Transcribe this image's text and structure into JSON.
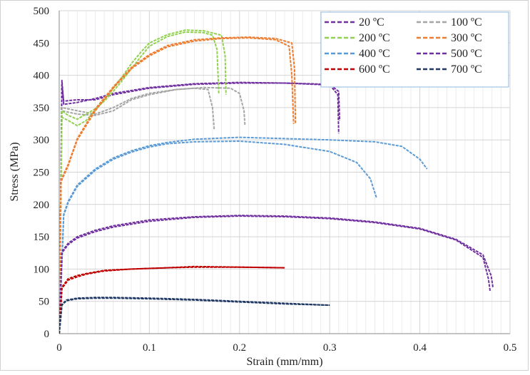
{
  "chart_data": {
    "type": "line",
    "title": "",
    "xlabel": "Strain (mm/mm)",
    "ylabel": "Stress (MPa)",
    "xlim": [
      0,
      0.5
    ],
    "ylim": [
      0,
      500
    ],
    "x_ticks": [
      "0",
      "0.1",
      "0.2",
      "0.3",
      "0.4",
      "0.5"
    ],
    "y_ticks": [
      "0",
      "50",
      "100",
      "150",
      "200",
      "250",
      "300",
      "350",
      "400",
      "450",
      "500"
    ],
    "grid": "on",
    "legend_position": "top-right",
    "series": [
      {
        "name": "20 ºC",
        "color": "#7030a0",
        "runs": [
          [
            [
              0,
              0
            ],
            [
              0.003,
              385
            ],
            [
              0.005,
              360
            ],
            [
              0.02,
              362
            ],
            [
              0.04,
              362
            ],
            [
              0.06,
              370
            ],
            [
              0.1,
              380
            ],
            [
              0.15,
              386
            ],
            [
              0.2,
              388
            ],
            [
              0.25,
              388
            ],
            [
              0.3,
              386
            ],
            [
              0.31,
              375
            ],
            [
              0.311,
              330
            ]
          ],
          [
            [
              0,
              0
            ],
            [
              0.003,
              392
            ],
            [
              0.005,
              355
            ],
            [
              0.02,
              358
            ],
            [
              0.04,
              364
            ],
            [
              0.06,
              372
            ],
            [
              0.1,
              381
            ],
            [
              0.15,
              387
            ],
            [
              0.2,
              389
            ],
            [
              0.25,
              388
            ],
            [
              0.3,
              385
            ],
            [
              0.309,
              370
            ],
            [
              0.31,
              310
            ]
          ]
        ]
      },
      {
        "name": "100 ºC",
        "color": "#a5a5a5",
        "runs": [
          [
            [
              0,
              0
            ],
            [
              0.003,
              345
            ],
            [
              0.02,
              340
            ],
            [
              0.04,
              338
            ],
            [
              0.06,
              345
            ],
            [
              0.08,
              362
            ],
            [
              0.1,
              370
            ],
            [
              0.13,
              378
            ],
            [
              0.15,
              380
            ],
            [
              0.165,
              378
            ],
            [
              0.17,
              350
            ],
            [
              0.172,
              315
            ]
          ],
          [
            [
              0,
              0
            ],
            [
              0.003,
              350
            ],
            [
              0.02,
              345
            ],
            [
              0.04,
              340
            ],
            [
              0.06,
              350
            ],
            [
              0.08,
              364
            ],
            [
              0.1,
              372
            ],
            [
              0.13,
              378
            ],
            [
              0.16,
              381
            ],
            [
              0.19,
              380
            ],
            [
              0.2,
              372
            ],
            [
              0.205,
              345
            ],
            [
              0.206,
              322
            ]
          ]
        ]
      },
      {
        "name": "200 ºC",
        "color": "#92d050",
        "runs": [
          [
            [
              0,
              0
            ],
            [
              0.003,
              345
            ],
            [
              0.01,
              338
            ],
            [
              0.02,
              332
            ],
            [
              0.03,
              340
            ],
            [
              0.04,
              348
            ],
            [
              0.05,
              360
            ],
            [
              0.06,
              375
            ],
            [
              0.07,
              392
            ],
            [
              0.08,
              410
            ],
            [
              0.09,
              428
            ],
            [
              0.1,
              445
            ],
            [
              0.12,
              460
            ],
            [
              0.14,
              467
            ],
            [
              0.16,
              466
            ],
            [
              0.17,
              462
            ],
            [
              0.175,
              440
            ],
            [
              0.177,
              372
            ]
          ],
          [
            [
              0,
              0
            ],
            [
              0.003,
              335
            ],
            [
              0.01,
              330
            ],
            [
              0.02,
              322
            ],
            [
              0.03,
              330
            ],
            [
              0.04,
              346
            ],
            [
              0.05,
              362
            ],
            [
              0.06,
              380
            ],
            [
              0.07,
              398
            ],
            [
              0.08,
              418
            ],
            [
              0.09,
              435
            ],
            [
              0.1,
              450
            ],
            [
              0.12,
              463
            ],
            [
              0.14,
              470
            ],
            [
              0.16,
              469
            ],
            [
              0.18,
              462
            ],
            [
              0.184,
              430
            ],
            [
              0.185,
              370
            ]
          ]
        ]
      },
      {
        "name": "300 ºC",
        "color": "#ed7d31",
        "runs": [
          [
            [
              0,
              0
            ],
            [
              0.002,
              235
            ],
            [
              0.01,
              260
            ],
            [
              0.02,
              300
            ],
            [
              0.04,
              345
            ],
            [
              0.06,
              380
            ],
            [
              0.08,
              410
            ],
            [
              0.1,
              430
            ],
            [
              0.12,
              444
            ],
            [
              0.15,
              453
            ],
            [
              0.18,
              457
            ],
            [
              0.21,
              458
            ],
            [
              0.24,
              455
            ],
            [
              0.255,
              445
            ],
            [
              0.258,
              400
            ],
            [
              0.26,
              325
            ]
          ],
          [
            [
              0,
              0
            ],
            [
              0.002,
              238
            ],
            [
              0.01,
              262
            ],
            [
              0.02,
              302
            ],
            [
              0.04,
              348
            ],
            [
              0.06,
              382
            ],
            [
              0.08,
              412
            ],
            [
              0.1,
              432
            ],
            [
              0.12,
              446
            ],
            [
              0.15,
              455
            ],
            [
              0.18,
              458
            ],
            [
              0.21,
              459
            ],
            [
              0.24,
              457
            ],
            [
              0.258,
              450
            ],
            [
              0.261,
              410
            ],
            [
              0.262,
              325
            ]
          ]
        ]
      },
      {
        "name": "400 ºC",
        "color": "#5b9bd5",
        "runs": [
          [
            [
              0,
              0
            ],
            [
              0.005,
              185
            ],
            [
              0.01,
              205
            ],
            [
              0.02,
              230
            ],
            [
              0.04,
              255
            ],
            [
              0.06,
              272
            ],
            [
              0.08,
              283
            ],
            [
              0.1,
              291
            ],
            [
              0.12,
              296
            ],
            [
              0.15,
              301
            ],
            [
              0.2,
              304
            ],
            [
              0.25,
              302
            ],
            [
              0.3,
              300
            ],
            [
              0.35,
              297
            ],
            [
              0.38,
              290
            ],
            [
              0.4,
              270
            ],
            [
              0.408,
              255
            ]
          ],
          [
            [
              0,
              0
            ],
            [
              0.005,
              183
            ],
            [
              0.01,
              203
            ],
            [
              0.02,
              228
            ],
            [
              0.04,
              253
            ],
            [
              0.06,
              270
            ],
            [
              0.08,
              281
            ],
            [
              0.1,
              289
            ],
            [
              0.12,
              294
            ],
            [
              0.15,
              297
            ],
            [
              0.2,
              298
            ],
            [
              0.25,
              293
            ],
            [
              0.3,
              282
            ],
            [
              0.33,
              265
            ],
            [
              0.345,
              240
            ],
            [
              0.352,
              210
            ]
          ]
        ]
      },
      {
        "name": "500 ºC",
        "color": "#7030a0",
        "runs": [
          [
            [
              0,
              0
            ],
            [
              0.003,
              125
            ],
            [
              0.01,
              138
            ],
            [
              0.02,
              148
            ],
            [
              0.04,
              158
            ],
            [
              0.06,
              165
            ],
            [
              0.1,
              174
            ],
            [
              0.15,
              180
            ],
            [
              0.2,
              182
            ],
            [
              0.25,
              181
            ],
            [
              0.3,
              178
            ],
            [
              0.35,
              172
            ],
            [
              0.4,
              162
            ],
            [
              0.44,
              145
            ],
            [
              0.47,
              118
            ],
            [
              0.476,
              85
            ],
            [
              0.478,
              65
            ]
          ],
          [
            [
              0,
              0
            ],
            [
              0.003,
              127
            ],
            [
              0.01,
              140
            ],
            [
              0.02,
              150
            ],
            [
              0.04,
              160
            ],
            [
              0.06,
              167
            ],
            [
              0.1,
              176
            ],
            [
              0.15,
              181
            ],
            [
              0.2,
              183
            ],
            [
              0.25,
              182
            ],
            [
              0.3,
              179
            ],
            [
              0.35,
              173
            ],
            [
              0.4,
              163
            ],
            [
              0.44,
              146
            ],
            [
              0.47,
              122
            ],
            [
              0.479,
              90
            ],
            [
              0.481,
              72
            ]
          ]
        ]
      },
      {
        "name": "600 ºC",
        "color": "#c00000",
        "runs": [
          [
            [
              0,
              0
            ],
            [
              0.003,
              72
            ],
            [
              0.01,
              85
            ],
            [
              0.02,
              90
            ],
            [
              0.03,
              93
            ],
            [
              0.05,
              98
            ],
            [
              0.08,
              100
            ],
            [
              0.12,
              102
            ],
            [
              0.15,
              103
            ],
            [
              0.2,
              103
            ],
            [
              0.25,
              102
            ]
          ],
          [
            [
              0,
              0
            ],
            [
              0.003,
              70
            ],
            [
              0.01,
              83
            ],
            [
              0.02,
              88
            ],
            [
              0.03,
              92
            ],
            [
              0.05,
              97
            ],
            [
              0.08,
              100
            ],
            [
              0.12,
              102
            ],
            [
              0.15,
              104
            ],
            [
              0.2,
              103
            ],
            [
              0.25,
              102
            ]
          ]
        ]
      },
      {
        "name": "700 ºC",
        "color": "#1f3864",
        "runs": [
          [
            [
              0,
              0
            ],
            [
              0.003,
              45
            ],
            [
              0.008,
              52
            ],
            [
              0.02,
              55
            ],
            [
              0.04,
              56
            ],
            [
              0.06,
              56
            ],
            [
              0.1,
              55
            ],
            [
              0.15,
              53
            ],
            [
              0.2,
              50
            ],
            [
              0.25,
              47
            ],
            [
              0.3,
              44
            ]
          ],
          [
            [
              0,
              0
            ],
            [
              0.003,
              44
            ],
            [
              0.008,
              51
            ],
            [
              0.02,
              54
            ],
            [
              0.04,
              55
            ],
            [
              0.06,
              55
            ],
            [
              0.1,
              54
            ],
            [
              0.15,
              52
            ],
            [
              0.2,
              49
            ],
            [
              0.25,
              46
            ],
            [
              0.3,
              44
            ]
          ]
        ]
      }
    ]
  }
}
